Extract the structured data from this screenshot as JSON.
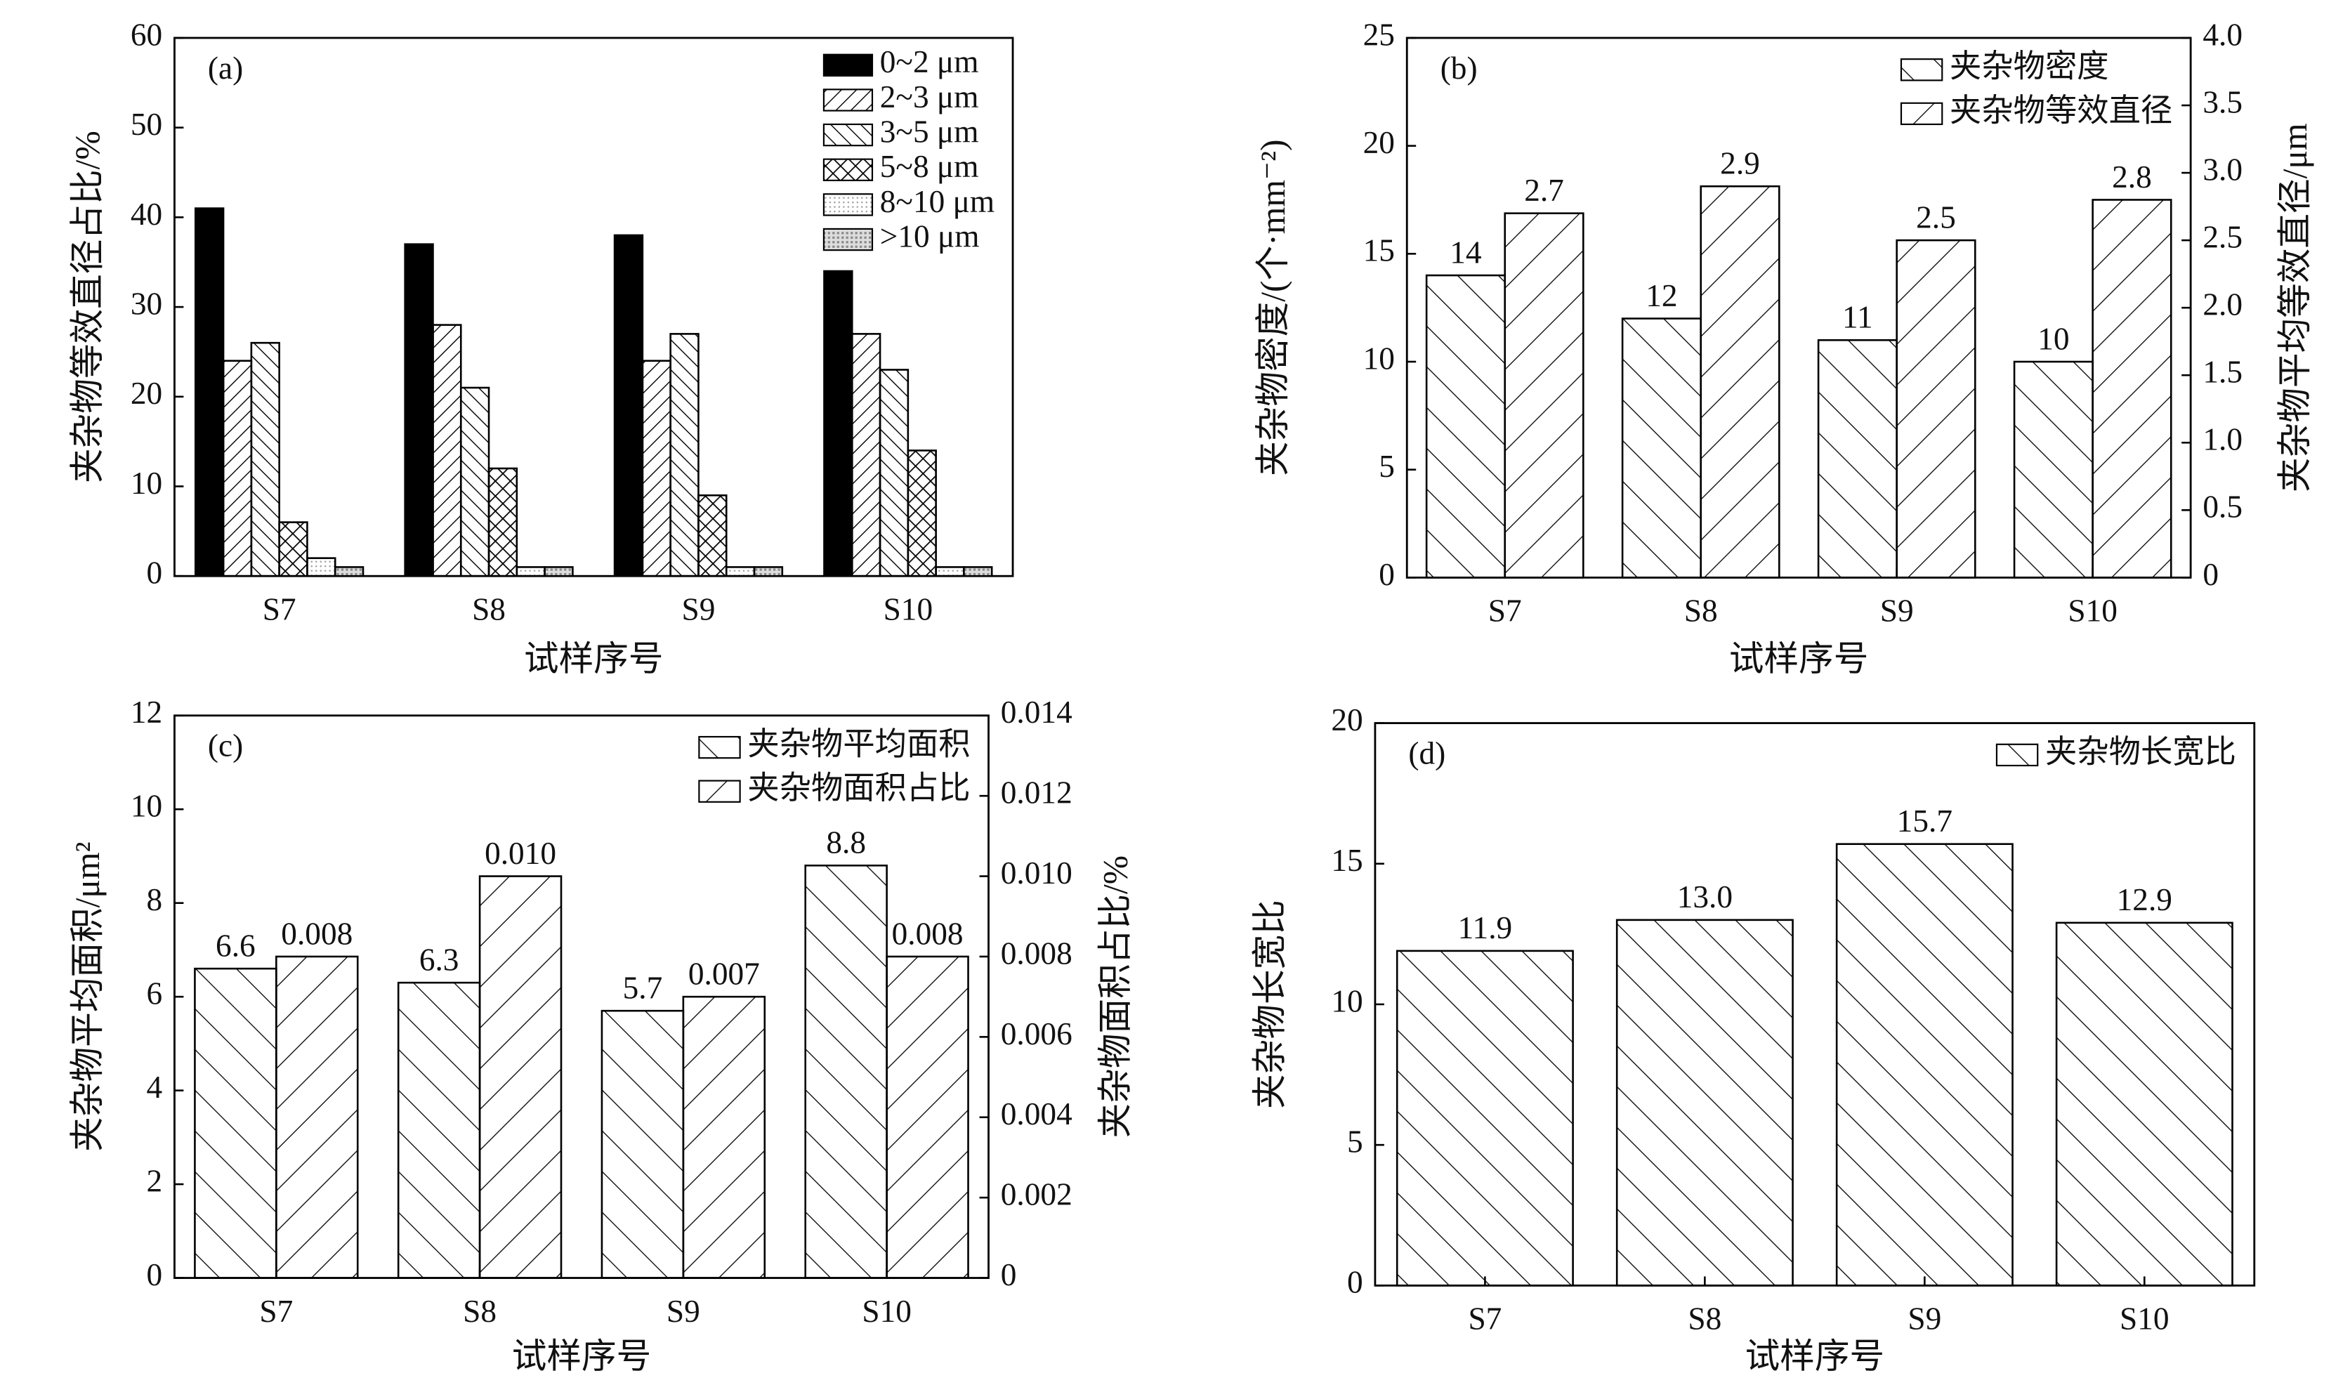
{
  "chart_data": [
    {
      "type": "bar",
      "panel_label": "(a)",
      "categories": [
        "S7",
        "S8",
        "S9",
        "S10"
      ],
      "xlabel": "试样序号",
      "ylabel": "夹杂物等效直径占比/%",
      "ylim": [
        0,
        60
      ],
      "yticks": [
        0,
        10,
        20,
        30,
        40,
        50,
        60
      ],
      "legend": "upper right",
      "data_labels": false,
      "series": [
        {
          "name": "0~2 μm",
          "color": "#000000",
          "pattern": "solid",
          "values": [
            41,
            37,
            38,
            34
          ]
        },
        {
          "name": "2~3 μm",
          "color": "#000000",
          "pattern": "fwd",
          "values": [
            24,
            28,
            24,
            27
          ]
        },
        {
          "name": "3~5 μm",
          "color": "#000000",
          "pattern": "back",
          "values": [
            26,
            21,
            27,
            23
          ]
        },
        {
          "name": "5~8 μm",
          "color": "#000000",
          "pattern": "cross",
          "values": [
            6,
            12,
            9,
            14
          ]
        },
        {
          "name": "8~10 μm",
          "color": "#000000",
          "pattern": "dots",
          "values": [
            2,
            1,
            1,
            1
          ]
        },
        {
          "name": ">10 μm",
          "color": "#000000",
          "pattern": "grid",
          "values": [
            1,
            1,
            1,
            1
          ]
        }
      ]
    },
    {
      "type": "bar",
      "panel_label": "(b)",
      "categories": [
        "S7",
        "S8",
        "S9",
        "S10"
      ],
      "xlabel": "试样序号",
      "ylabel": "夹杂物密度/(个·mm⁻²)",
      "y2label": "夹杂物平均等效直径/μm",
      "ylim": [
        0,
        25
      ],
      "yticks": [
        0,
        5,
        10,
        15,
        20,
        25
      ],
      "y2lim": [
        0,
        4
      ],
      "y2ticks": [
        0,
        0.5,
        {
          "value": 1,
          "label": "1.0"
        },
        1.5,
        {
          "value": 2,
          "label": "2.0"
        },
        2.5,
        {
          "value": 3,
          "label": "3.0"
        },
        3.5,
        {
          "value": 4,
          "label": "4.0"
        }
      ],
      "legend": "upper right",
      "data_labels": true,
      "series": [
        {
          "name": "夹杂物密度",
          "color": "#000000",
          "pattern": "back-wide",
          "values": [
            14,
            12,
            11,
            10
          ]
        },
        {
          "name": "夹杂物等效直径",
          "color": "#000000",
          "pattern": "fwd-wide",
          "axis": "y2",
          "values": [
            2.7,
            2.9,
            2.5,
            2.8
          ]
        }
      ]
    },
    {
      "type": "bar",
      "panel_label": "(c)",
      "categories": [
        "S7",
        "S8",
        "S9",
        "S10"
      ],
      "xlabel": "试样序号",
      "ylabel": "夹杂物平均面积/μm²",
      "y2label": "夹杂物面积占比/%",
      "ylim": [
        0,
        12
      ],
      "yticks": [
        0,
        2,
        4,
        6,
        8,
        10,
        12
      ],
      "y2lim": [
        0,
        0.014
      ],
      "y2ticks": [
        0,
        0.002,
        0.004,
        0.006,
        0.008,
        {
          "value": 0.01,
          "label": "0.010"
        },
        0.012,
        0.014
      ],
      "legend": "upper right",
      "data_labels": true,
      "series": [
        {
          "name": "夹杂物平均面积",
          "color": "#000000",
          "pattern": "back-wide",
          "values": [
            6.6,
            6.3,
            5.7,
            8.8
          ]
        },
        {
          "name": "夹杂物面积占比",
          "color": "#000000",
          "pattern": "fwd-wide",
          "axis": "y2",
          "values": [
            0.008,
            0.01,
            0.007,
            0.008
          ],
          "value_labels": [
            "0.008",
            "0.010",
            "0.007",
            "0.008"
          ]
        }
      ]
    },
    {
      "type": "bar",
      "panel_label": "(d)",
      "categories": [
        "S7",
        "S8",
        "S9",
        "S10"
      ],
      "xlabel": "试样序号",
      "ylabel": "夹杂物长宽比",
      "ylim": [
        0,
        20
      ],
      "yticks": [
        0,
        5,
        10,
        15,
        20
      ],
      "legend": "upper right",
      "data_labels": true,
      "series": [
        {
          "name": "夹杂物长宽比",
          "color": "#000000",
          "pattern": "back-wide",
          "values": [
            11.9,
            13,
            15.7,
            12.9
          ],
          "value_labels": [
            "11.9",
            "13.0",
            "15.7",
            "12.9"
          ]
        }
      ]
    }
  ]
}
